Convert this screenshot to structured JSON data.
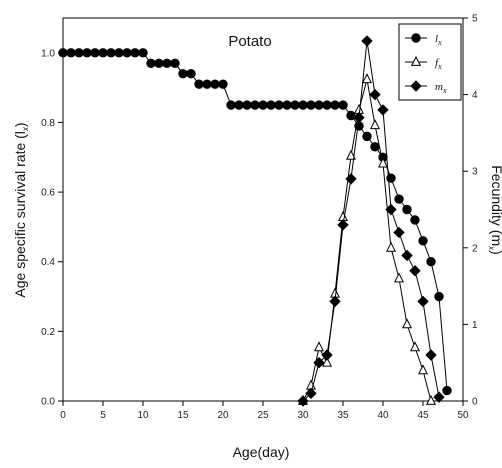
{
  "chart_data": {
    "type": "line",
    "title": "Potato",
    "xlabel": "Age(day)",
    "ylabel_left": "Age specific survival rate (l",
    "ylabel_left_sub": "x",
    "ylabel_left_suffix": ")",
    "ylabel_right": "Fecundity (m",
    "ylabel_right_sub": "x",
    "ylabel_right_suffix": ")",
    "xlim": [
      0,
      50
    ],
    "ylim_left": [
      0,
      1.1
    ],
    "ylim_right": [
      0,
      5
    ],
    "xticks": [
      0,
      5,
      10,
      15,
      20,
      25,
      30,
      35,
      40,
      45,
      50
    ],
    "yticks_left": [
      "0.0",
      "0.2",
      "0.4",
      "0.6",
      "0.8",
      "1.0"
    ],
    "yticks_right": [
      "0",
      "1",
      "2",
      "3",
      "4",
      "5"
    ],
    "legend_position": "top-right",
    "series": [
      {
        "name": "l",
        "sub": "x",
        "axis": "left",
        "marker": "circle",
        "fill": "#000000",
        "x": [
          0,
          1,
          2,
          3,
          4,
          5,
          6,
          7,
          8,
          9,
          10,
          11,
          12,
          13,
          14,
          15,
          16,
          17,
          18,
          19,
          20,
          21,
          22,
          23,
          24,
          25,
          26,
          27,
          28,
          29,
          30,
          31,
          32,
          33,
          34,
          35,
          36,
          37,
          38,
          39,
          40,
          41,
          42,
          43,
          44,
          45,
          46,
          47,
          48
        ],
        "y": [
          1.0,
          1.0,
          1.0,
          1.0,
          1.0,
          1.0,
          1.0,
          1.0,
          1.0,
          1.0,
          1.0,
          0.97,
          0.97,
          0.97,
          0.97,
          0.94,
          0.94,
          0.91,
          0.91,
          0.91,
          0.91,
          0.85,
          0.85,
          0.85,
          0.85,
          0.85,
          0.85,
          0.85,
          0.85,
          0.85,
          0.85,
          0.85,
          0.85,
          0.85,
          0.85,
          0.85,
          0.82,
          0.79,
          0.76,
          0.73,
          0.7,
          0.64,
          0.58,
          0.55,
          0.52,
          0.46,
          0.4,
          0.3,
          0.03
        ]
      },
      {
        "name": "f",
        "sub": "x",
        "axis": "right",
        "marker": "triangle",
        "fill": "#ffffff",
        "x": [
          30,
          31,
          32,
          33,
          34,
          35,
          36,
          37,
          38,
          39,
          40,
          41,
          42,
          43,
          44,
          45,
          46
        ],
        "y": [
          0,
          0.2,
          0.7,
          0.5,
          1.4,
          2.4,
          3.2,
          3.8,
          4.2,
          3.6,
          3.1,
          2.0,
          1.6,
          1.0,
          0.7,
          0.4,
          0
        ],
        "note": ""
      },
      {
        "name": "m",
        "sub": "x",
        "axis": "right",
        "marker": "diamond",
        "fill": "#000000",
        "x": [
          30,
          31,
          32,
          33,
          34,
          35,
          36,
          37,
          38,
          39,
          40,
          41,
          42,
          43,
          44,
          45,
          46,
          47
        ],
        "y": [
          0,
          0.1,
          0.5,
          0.6,
          1.3,
          2.3,
          2.9,
          3.7,
          4.7,
          4.0,
          3.8,
          2.5,
          2.2,
          1.9,
          1.7,
          1.3,
          0.6,
          0.05
        ]
      }
    ]
  }
}
